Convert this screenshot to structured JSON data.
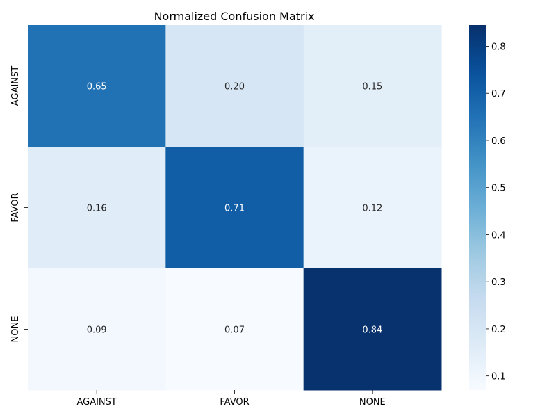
{
  "chart_data": {
    "type": "heatmap",
    "title": "Normalized Confusion Matrix",
    "xlabel": "",
    "ylabel": "",
    "x_categories": [
      "AGAINST",
      "FAVOR",
      "NONE"
    ],
    "y_categories": [
      "AGAINST",
      "FAVOR",
      "NONE"
    ],
    "values": [
      [
        0.65,
        0.2,
        0.15
      ],
      [
        0.16,
        0.71,
        0.12
      ],
      [
        0.09,
        0.07,
        0.84
      ]
    ],
    "value_labels": [
      [
        "0.65",
        "0.20",
        "0.15"
      ],
      [
        "0.16",
        "0.71",
        "0.12"
      ],
      [
        "0.09",
        "0.07",
        "0.84"
      ]
    ],
    "colormap": "Blues",
    "vmin": 0.07,
    "vmax": 0.845,
    "colorbar_ticks": [
      0.1,
      0.2,
      0.3,
      0.4,
      0.5,
      0.6,
      0.7,
      0.8
    ],
    "colorbar_tick_labels": [
      "0.1",
      "0.2",
      "0.3",
      "0.4",
      "0.5",
      "0.6",
      "0.7",
      "0.8"
    ],
    "annotation_dark_color": "#262626",
    "annotation_light_color": "#ffffff",
    "grid": false
  }
}
